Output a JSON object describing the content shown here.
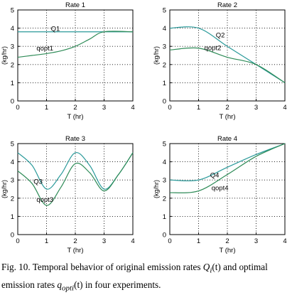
{
  "figure": {
    "caption": {
      "prefix": "Fig. 10. Temporal behavior of original emission rates ",
      "q_symbol": "Q",
      "q_sub": "i",
      "t_arg": "(t)",
      "middle": " and optimal emission rates ",
      "q_sym2": "q",
      "q_sub2": "opti",
      "t_arg2": "(t)",
      "suffix": " in four experiments."
    }
  },
  "chart_data": [
    {
      "type": "line",
      "title": "Rate 1",
      "xlabel": "T (hr)",
      "ylabel": "(kg/hr)",
      "xlim": [
        0,
        4
      ],
      "ylim": [
        0,
        5
      ],
      "xticks": [
        "0",
        "1",
        "2",
        "3",
        "4"
      ],
      "yticks": [
        "0",
        "1",
        "2",
        "3",
        "4",
        "5"
      ],
      "grid": true,
      "series": [
        {
          "name": "Q1",
          "color": "#2a9a9a",
          "x": [
            0,
            4
          ],
          "y": [
            3.8,
            3.8
          ]
        },
        {
          "name": "qopt1",
          "color": "#2e8b57",
          "x": [
            0,
            0.5,
            1,
            1.5,
            2,
            2.5,
            3,
            4
          ],
          "y": [
            2.4,
            2.5,
            2.6,
            2.75,
            3.0,
            3.4,
            3.8,
            3.8
          ]
        }
      ],
      "labels": [
        {
          "text": "Q1",
          "x": 1.15,
          "y": 3.85
        },
        {
          "text": "qopt1",
          "x": 0.65,
          "y": 2.78
        }
      ]
    },
    {
      "type": "line",
      "title": "Rate 2",
      "xlabel": "T (hr)",
      "ylabel": "(kg/hr)",
      "xlim": [
        0,
        4
      ],
      "ylim": [
        0,
        5
      ],
      "xticks": [
        "0",
        "1",
        "2",
        "3",
        "4"
      ],
      "yticks": [
        "0",
        "1",
        "2",
        "3",
        "4",
        "5"
      ],
      "grid": true,
      "series": [
        {
          "name": "Q2",
          "color": "#2a9a9a",
          "x": [
            0,
            1,
            2,
            3,
            4
          ],
          "y": [
            4.0,
            4.0,
            3.0,
            2.0,
            1.0
          ]
        },
        {
          "name": "qopt2",
          "color": "#2e8b57",
          "x": [
            0,
            1,
            2,
            3,
            4
          ],
          "y": [
            2.8,
            2.9,
            2.4,
            2.0,
            1.0
          ]
        }
      ],
      "labels": [
        {
          "text": "Q2",
          "x": 1.6,
          "y": 3.5
        },
        {
          "text": "qopt2",
          "x": 1.2,
          "y": 2.8
        }
      ]
    },
    {
      "type": "line",
      "title": "Rate 3",
      "xlabel": "T (hr)",
      "ylabel": "(kg/hr)",
      "xlim": [
        0,
        4
      ],
      "ylim": [
        0,
        5
      ],
      "xticks": [
        "0",
        "1",
        "2",
        "3",
        "4"
      ],
      "yticks": [
        "0",
        "1",
        "2",
        "3",
        "4",
        "5"
      ],
      "grid": true,
      "series": [
        {
          "name": "Q3",
          "color": "#2a9a9a",
          "x": [
            0,
            0.5,
            1,
            1.5,
            2,
            2.5,
            3,
            3.5,
            4
          ],
          "y": [
            4.5,
            3.8,
            2.5,
            3.3,
            4.5,
            3.8,
            2.5,
            3.3,
            4.5
          ]
        },
        {
          "name": "qopt3",
          "color": "#2e8b57",
          "x": [
            0,
            0.5,
            1,
            1.5,
            2,
            2.5,
            3,
            3.5,
            4
          ],
          "y": [
            3.5,
            2.8,
            1.6,
            2.6,
            3.9,
            3.4,
            2.4,
            3.3,
            4.5
          ]
        }
      ],
      "labels": [
        {
          "text": "Q3",
          "x": 0.55,
          "y": 2.8
        },
        {
          "text": "qopt3",
          "x": 0.65,
          "y": 1.8
        }
      ]
    },
    {
      "type": "line",
      "title": "Rate 4",
      "xlabel": "T (hr)",
      "ylabel": "(kg/hr)",
      "xlim": [
        0,
        4
      ],
      "ylim": [
        0,
        5
      ],
      "xticks": [
        "0",
        "1",
        "2",
        "3",
        "4"
      ],
      "yticks": [
        "0",
        "1",
        "2",
        "3",
        "4",
        "5"
      ],
      "grid": true,
      "series": [
        {
          "name": "Q4",
          "color": "#2a9a9a",
          "x": [
            0,
            1,
            2,
            3,
            4
          ],
          "y": [
            3.0,
            3.0,
            3.7,
            4.4,
            5.0
          ]
        },
        {
          "name": "qopt4",
          "color": "#2e8b57",
          "x": [
            0,
            1,
            2,
            3,
            4
          ],
          "y": [
            2.3,
            2.4,
            3.3,
            4.3,
            5.0
          ]
        }
      ],
      "labels": [
        {
          "text": "Q4",
          "x": 1.4,
          "y": 3.15
        },
        {
          "text": "qopt4",
          "x": 1.45,
          "y": 2.45
        }
      ]
    }
  ]
}
